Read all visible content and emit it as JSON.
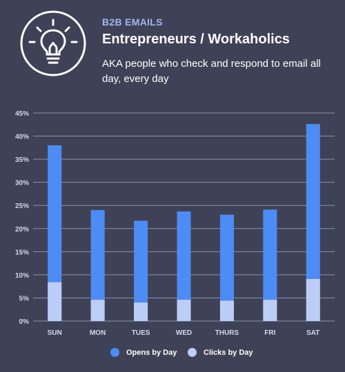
{
  "header": {
    "kicker": "B2B EMAILS",
    "title": "Entrepreneurs / Workaholics",
    "subtitle": "AKA people who check and respond to email all day, every day",
    "icon": "lightbulb-icon"
  },
  "colors": {
    "background": "#3f4256",
    "opens": "#4d8cf5",
    "clicks": "#bccdf6",
    "accent": "#9fb8f2",
    "grid": "#8c93ad",
    "axis_text": "#d4d9e8"
  },
  "chart_data": {
    "type": "bar",
    "categories": [
      "SUN",
      "MON",
      "TUES",
      "WED",
      "THURS",
      "FRI",
      "SAT"
    ],
    "series": [
      {
        "name": "Opens by Day",
        "values": [
          38.0,
          24.0,
          21.7,
          23.7,
          23.0,
          24.1,
          42.6
        ]
      },
      {
        "name": "Clicks by Day",
        "values": [
          8.4,
          4.6,
          4.0,
          4.6,
          4.4,
          4.6,
          9.1
        ]
      }
    ],
    "overlay": true,
    "ylim": [
      0,
      45
    ],
    "yticks": [
      "0%",
      "5%",
      "10%",
      "15%",
      "20%",
      "25%",
      "30%",
      "35%",
      "40%",
      "45%"
    ],
    "grid": true,
    "legend_position": "bottom"
  },
  "legend": {
    "opens_label": "Opens by Day",
    "clicks_label": "Clicks by Day"
  }
}
